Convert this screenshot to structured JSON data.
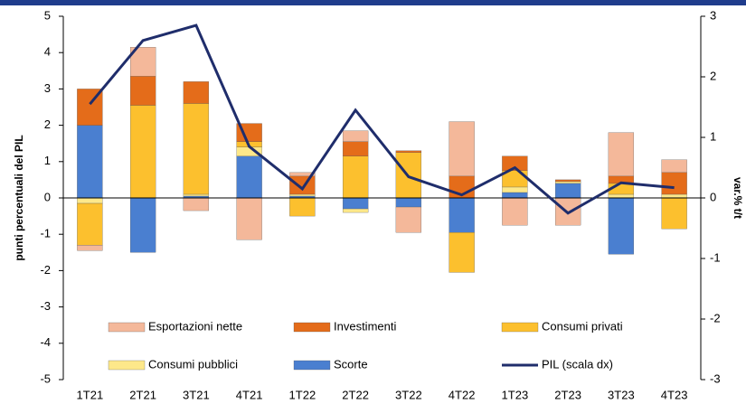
{
  "chart_data": {
    "type": "bar",
    "categories": [
      "1T21",
      "2T21",
      "3T21",
      "4T21",
      "1T22",
      "2T22",
      "3T22",
      "4T22",
      "1T23",
      "2T23",
      "3T23",
      "4T23"
    ],
    "ylabel": "punti percentuali del PIL",
    "y2label": "var.% t/t",
    "ylim": [
      -5,
      5
    ],
    "yticks": [
      -5,
      -4,
      -3,
      -2,
      -1,
      0,
      1,
      2,
      3,
      4,
      5
    ],
    "y2lim": [
      -3,
      3
    ],
    "y2ticks": [
      -3,
      -2,
      -1,
      0,
      1,
      2,
      3
    ],
    "series": [
      {
        "name": "Esportazioni nette",
        "color": "#f4b89a",
        "values": [
          -0.15,
          0.8,
          -0.35,
          -1.15,
          0.1,
          0.3,
          -0.7,
          1.5,
          -0.75,
          -0.75,
          1.2,
          0.35
        ]
      },
      {
        "name": "Investimenti",
        "color": "#e46c1a",
        "values": [
          1.0,
          0.8,
          0.6,
          0.5,
          0.5,
          0.4,
          0.05,
          0.6,
          0.4,
          0.05,
          0.2,
          0.6
        ]
      },
      {
        "name": "Consumi privati",
        "color": "#fcc02e",
        "values": [
          -1.15,
          2.55,
          2.5,
          0.15,
          -0.5,
          1.15,
          1.25,
          -1.1,
          0.45,
          0.0,
          0.3,
          -0.85
        ]
      },
      {
        "name": "Consumi pubblici",
        "color": "#fde88a",
        "values": [
          -0.15,
          0.0,
          0.05,
          0.25,
          0.05,
          -0.1,
          0.0,
          0.0,
          0.15,
          0.05,
          0.1,
          0.1
        ]
      },
      {
        "name": "Scorte",
        "color": "#4a7fd0",
        "values": [
          2.0,
          -1.5,
          0.05,
          1.15,
          0.05,
          -0.3,
          -0.25,
          -0.95,
          0.15,
          0.4,
          -1.55,
          0.0
        ]
      },
      {
        "name": "PIL (scala dx)",
        "color": "#1f2d6b",
        "type": "line",
        "axis": "y2",
        "values": [
          1.55,
          2.6,
          2.85,
          0.85,
          0.15,
          1.45,
          0.35,
          0.05,
          0.5,
          -0.25,
          0.25,
          0.17
        ]
      }
    ]
  }
}
